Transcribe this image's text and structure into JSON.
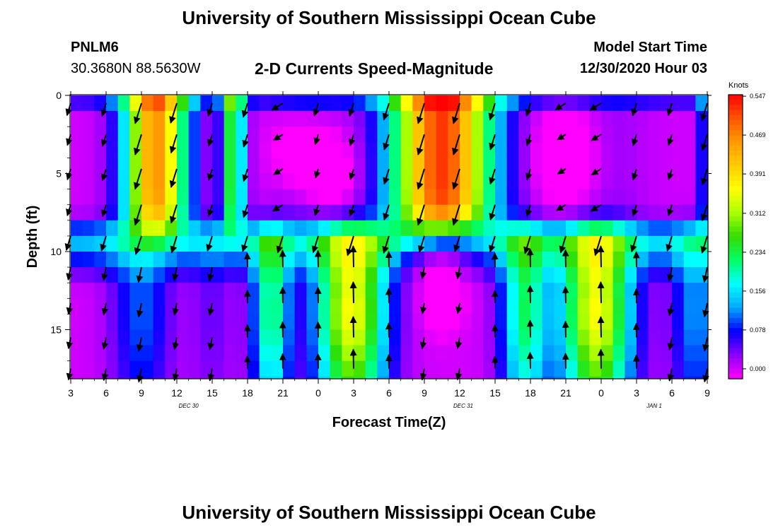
{
  "page": {
    "title": "University of Southern Mississippi Ocean Cube",
    "footer_title": "University of Southern Mississippi Ocean Cube",
    "station_id": "PNLM6",
    "station_coords": "30.3680N 88.5630W",
    "subtitle": "2-D Currents Speed-Magnitude",
    "model_start_label": "Model Start Time",
    "model_start_value": "12/30/2020 Hour 03"
  },
  "chart_data": {
    "type": "heatmap",
    "title": "2-D Currents Speed-Magnitude",
    "xlabel": "Forecast Time(Z)",
    "ylabel": "Depth (ft)",
    "x_range_hours": [
      0,
      54
    ],
    "x_ticks": [
      {
        "h": 0,
        "label": "3"
      },
      {
        "h": 3,
        "label": "6"
      },
      {
        "h": 6,
        "label": "9"
      },
      {
        "h": 9,
        "label": "12"
      },
      {
        "h": 12,
        "label": "15"
      },
      {
        "h": 15,
        "label": "18"
      },
      {
        "h": 18,
        "label": "21"
      },
      {
        "h": 21,
        "label": "0"
      },
      {
        "h": 24,
        "label": "3"
      },
      {
        "h": 27,
        "label": "6"
      },
      {
        "h": 30,
        "label": "9"
      },
      {
        "h": 33,
        "label": "12"
      },
      {
        "h": 36,
        "label": "15"
      },
      {
        "h": 39,
        "label": "18"
      },
      {
        "h": 42,
        "label": "21"
      },
      {
        "h": 45,
        "label": "0"
      },
      {
        "h": 48,
        "label": "3"
      },
      {
        "h": 51,
        "label": "6"
      },
      {
        "h": 54,
        "label": "9"
      }
    ],
    "date_labels": [
      {
        "h": 10,
        "label": "DEC 30"
      },
      {
        "h": 33.3,
        "label": "DEC 31"
      },
      {
        "h": 49.5,
        "label": "JAN 1"
      }
    ],
    "y_range_ft": [
      0,
      18.1
    ],
    "y_ticks": [
      0,
      5,
      10,
      15
    ],
    "colorbar": {
      "unit": "Knots",
      "min": -0.02,
      "max": 0.55,
      "labels": [
        "0.547",
        "0.469",
        "0.391",
        "0.312",
        "0.234",
        "0.156",
        "0.078",
        "0.000"
      ],
      "colors": [
        "#ff00ff",
        "#8c00ff",
        "#0000ff",
        "#00aaff",
        "#00ffff",
        "#00ff66",
        "#33dd00",
        "#aaff00",
        "#ffff00",
        "#ffcc00",
        "#ff9900",
        "#ff5500",
        "#ff0000"
      ]
    },
    "arrow_columns_h": [
      0,
      3,
      6,
      9,
      12,
      15,
      18,
      21,
      24,
      27,
      30,
      33,
      36,
      39,
      42,
      45,
      48,
      51,
      54
    ],
    "arrow_rows_ft": [
      0.5,
      2.5,
      4.7,
      7,
      9,
      11,
      13.3,
      15.5,
      17.5
    ]
  }
}
